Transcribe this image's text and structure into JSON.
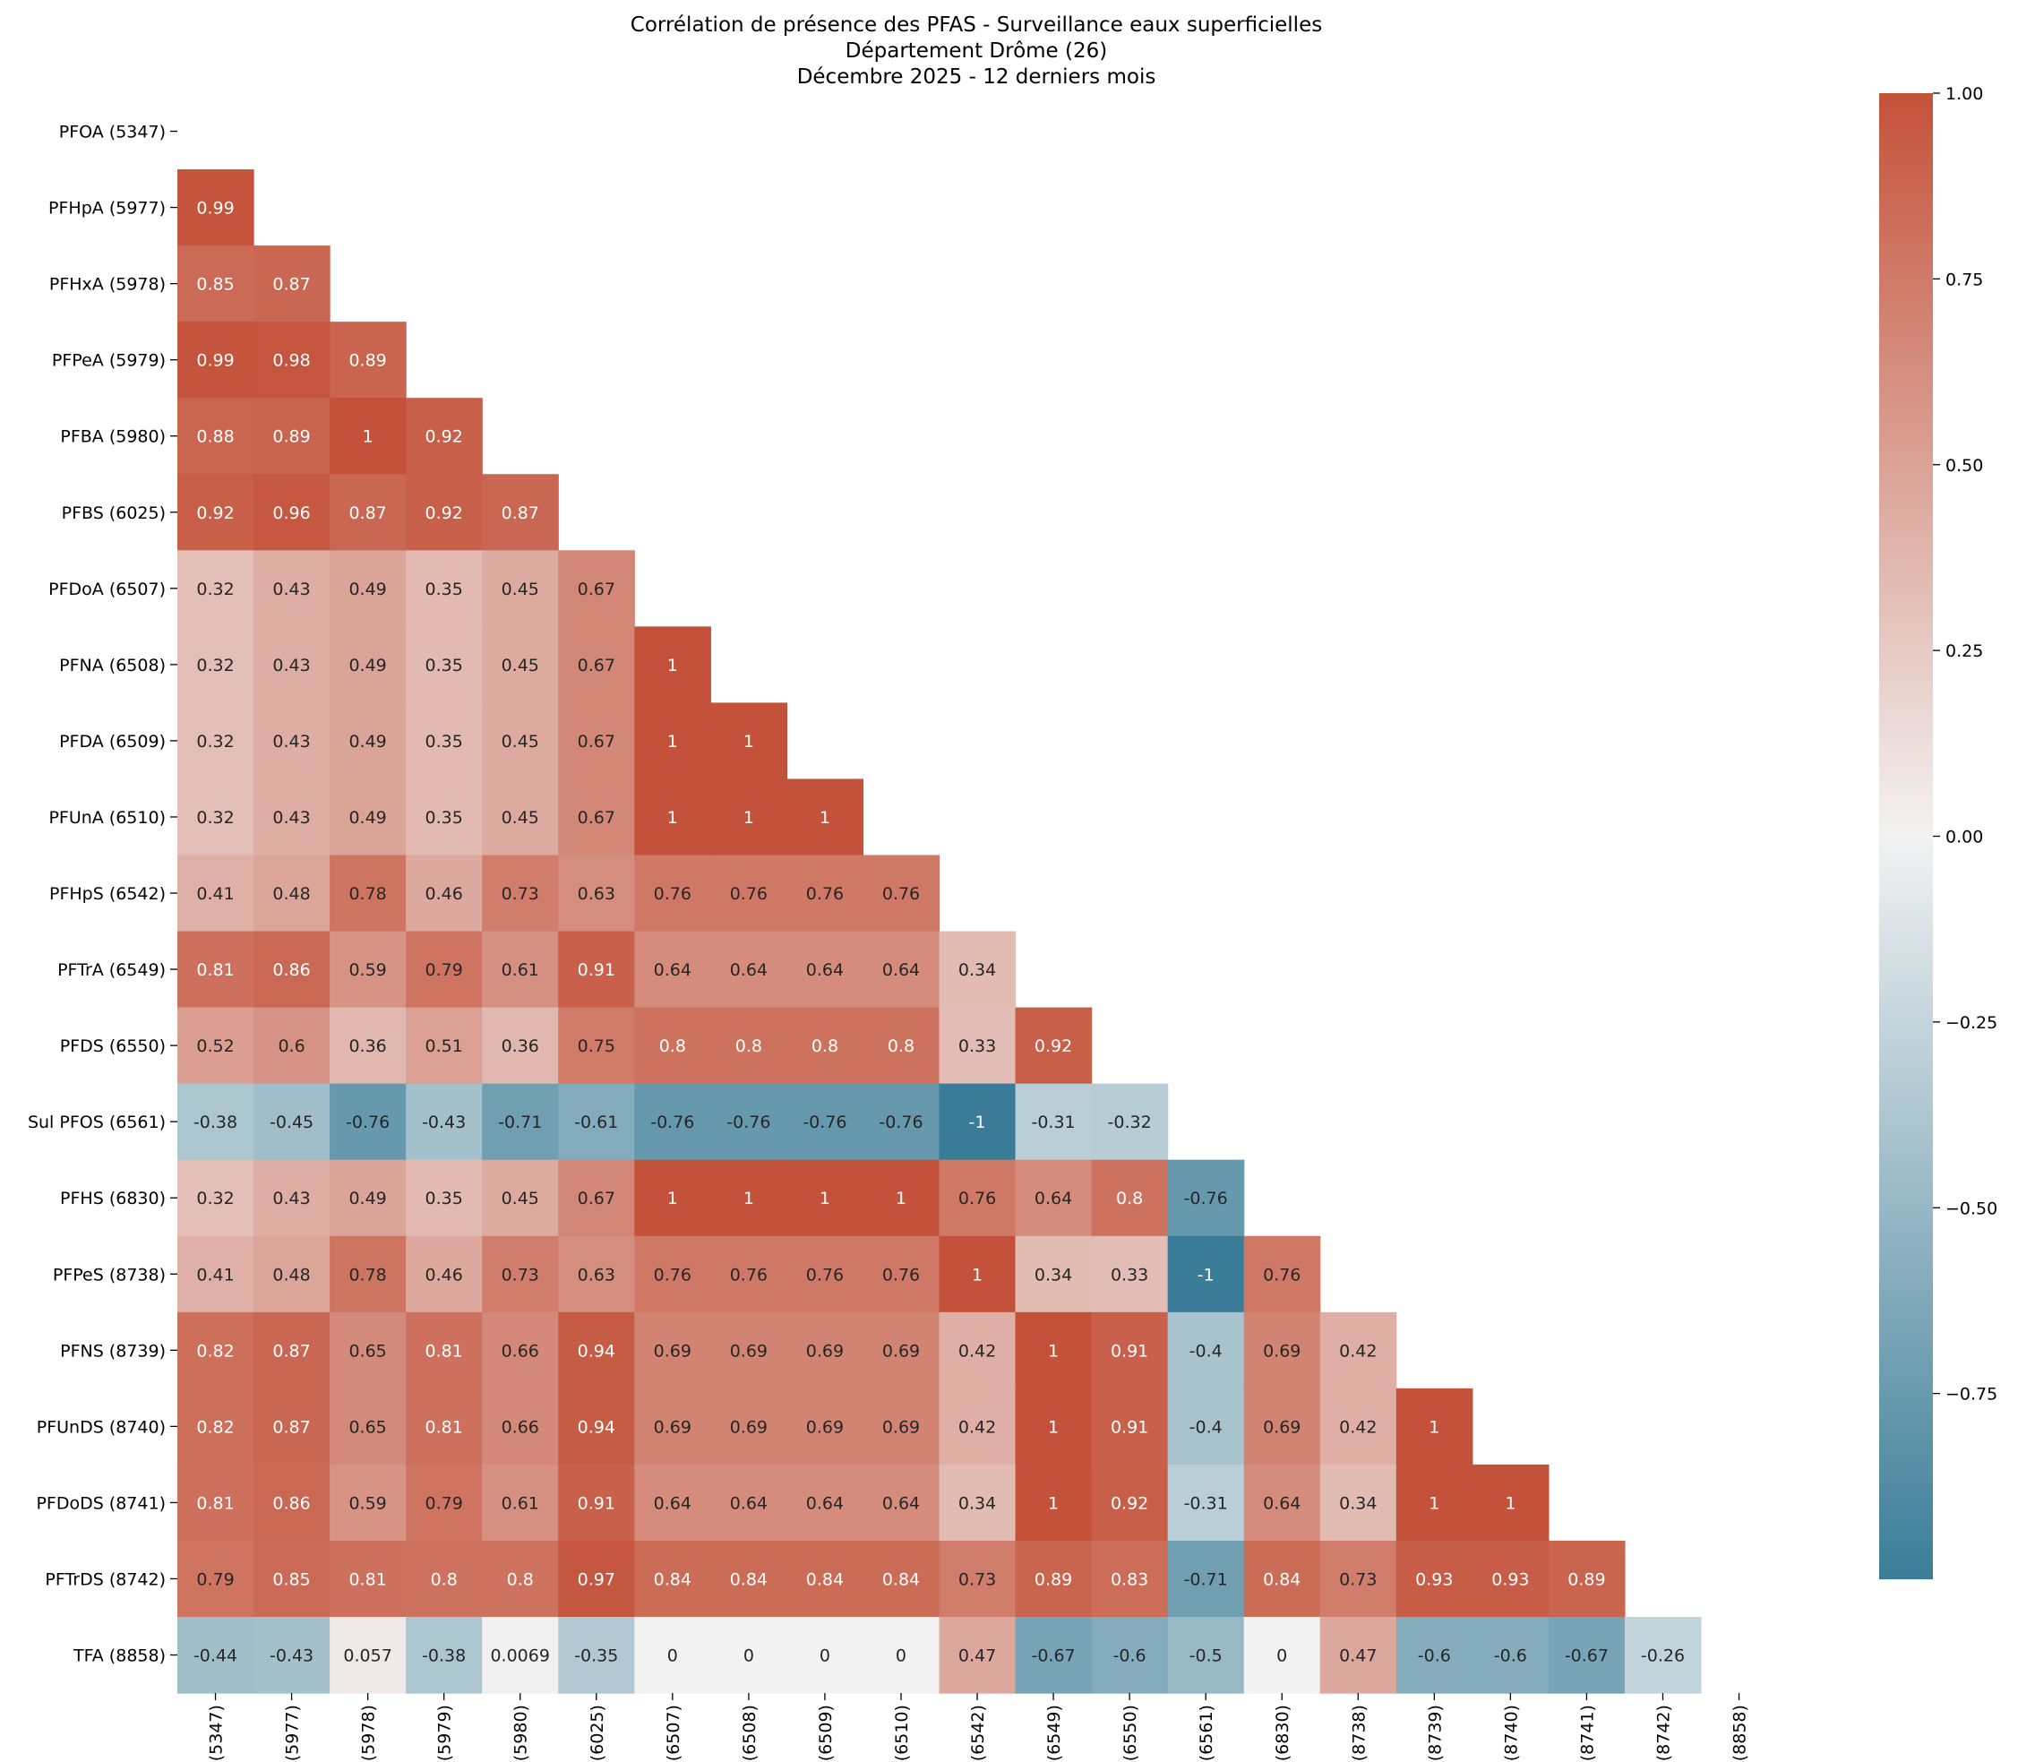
{
  "chart_data": {
    "type": "heatmap",
    "title": [
      "Corrélation de présence des PFAS - Surveillance eaux superficielles",
      "Département Drôme (26)",
      "Décembre 2025 - 12 derniers mois"
    ],
    "labels": [
      "PFOA (5347)",
      "PFHpA (5977)",
      "PFHxA (5978)",
      "PFPeA (5979)",
      "PFBA (5980)",
      "PFBS (6025)",
      "PFDoA (6507)",
      "PFNA (6508)",
      "PFDA (6509)",
      "PFUnA (6510)",
      "PFHpS (6542)",
      "PFTrA (6549)",
      "PFDS (6550)",
      "Sul PFOS (6561)",
      "PFHS (6830)",
      "PFPeS (8738)",
      "PFNS (8739)",
      "PFUnDS (8740)",
      "PFDoDS (8741)",
      "PFTrDS (8742)",
      "TFA (8858)"
    ],
    "mask": "upper triangle including diagonal",
    "values": [
      [],
      [
        "0.99"
      ],
      [
        "0.85",
        "0.87"
      ],
      [
        "0.99",
        "0.98",
        "0.89"
      ],
      [
        "0.88",
        "0.89",
        "1",
        "0.92"
      ],
      [
        "0.92",
        "0.96",
        "0.87",
        "0.92",
        "0.87"
      ],
      [
        "0.32",
        "0.43",
        "0.49",
        "0.35",
        "0.45",
        "0.67"
      ],
      [
        "0.32",
        "0.43",
        "0.49",
        "0.35",
        "0.45",
        "0.67",
        "1"
      ],
      [
        "0.32",
        "0.43",
        "0.49",
        "0.35",
        "0.45",
        "0.67",
        "1",
        "1"
      ],
      [
        "0.32",
        "0.43",
        "0.49",
        "0.35",
        "0.45",
        "0.67",
        "1",
        "1",
        "1"
      ],
      [
        "0.41",
        "0.48",
        "0.78",
        "0.46",
        "0.73",
        "0.63",
        "0.76",
        "0.76",
        "0.76",
        "0.76"
      ],
      [
        "0.81",
        "0.86",
        "0.59",
        "0.79",
        "0.61",
        "0.91",
        "0.64",
        "0.64",
        "0.64",
        "0.64",
        "0.34"
      ],
      [
        "0.52",
        "0.6",
        "0.36",
        "0.51",
        "0.36",
        "0.75",
        "0.8",
        "0.8",
        "0.8",
        "0.8",
        "0.33",
        "0.92"
      ],
      [
        "-0.38",
        "-0.45",
        "-0.76",
        "-0.43",
        "-0.71",
        "-0.61",
        "-0.76",
        "-0.76",
        "-0.76",
        "-0.76",
        "-1",
        "-0.31",
        "-0.32"
      ],
      [
        "0.32",
        "0.43",
        "0.49",
        "0.35",
        "0.45",
        "0.67",
        "1",
        "1",
        "1",
        "1",
        "0.76",
        "0.64",
        "0.8",
        "-0.76"
      ],
      [
        "0.41",
        "0.48",
        "0.78",
        "0.46",
        "0.73",
        "0.63",
        "0.76",
        "0.76",
        "0.76",
        "0.76",
        "1",
        "0.34",
        "0.33",
        "-1",
        "0.76"
      ],
      [
        "0.82",
        "0.87",
        "0.65",
        "0.81",
        "0.66",
        "0.94",
        "0.69",
        "0.69",
        "0.69",
        "0.69",
        "0.42",
        "1",
        "0.91",
        "-0.4",
        "0.69",
        "0.42"
      ],
      [
        "0.82",
        "0.87",
        "0.65",
        "0.81",
        "0.66",
        "0.94",
        "0.69",
        "0.69",
        "0.69",
        "0.69",
        "0.42",
        "1",
        "0.91",
        "-0.4",
        "0.69",
        "0.42",
        "1"
      ],
      [
        "0.81",
        "0.86",
        "0.59",
        "0.79",
        "0.61",
        "0.91",
        "0.64",
        "0.64",
        "0.64",
        "0.64",
        "0.34",
        "1",
        "0.92",
        "-0.31",
        "0.64",
        "0.34",
        "1",
        "1"
      ],
      [
        "0.79",
        "0.85",
        "0.81",
        "0.8",
        "0.8",
        "0.97",
        "0.84",
        "0.84",
        "0.84",
        "0.84",
        "0.73",
        "0.89",
        "0.83",
        "-0.71",
        "0.84",
        "0.73",
        "0.93",
        "0.93",
        "0.89"
      ],
      [
        "-0.44",
        "-0.43",
        "0.057",
        "-0.38",
        "0.0069",
        "-0.35",
        "0",
        "0",
        "0",
        "0",
        "0.47",
        "-0.67",
        "-0.6",
        "-0.5",
        "0",
        "0.47",
        "-0.6",
        "-0.6",
        "-0.67",
        "-0.26"
      ]
    ],
    "colorbar": {
      "range": [
        -1,
        1
      ],
      "ticks": [
        1.0,
        0.75,
        0.5,
        0.25,
        0.0,
        -0.25,
        -0.5,
        -0.75
      ],
      "tick_labels": [
        "1.00",
        "0.75",
        "0.50",
        "0.25",
        "0.00",
        "−0.25",
        "−0.50",
        "−0.75"
      ],
      "color_low": "#3b7d98",
      "color_mid": "#f2f2f2",
      "color_high": "#c4523a",
      "placement": "right"
    }
  }
}
